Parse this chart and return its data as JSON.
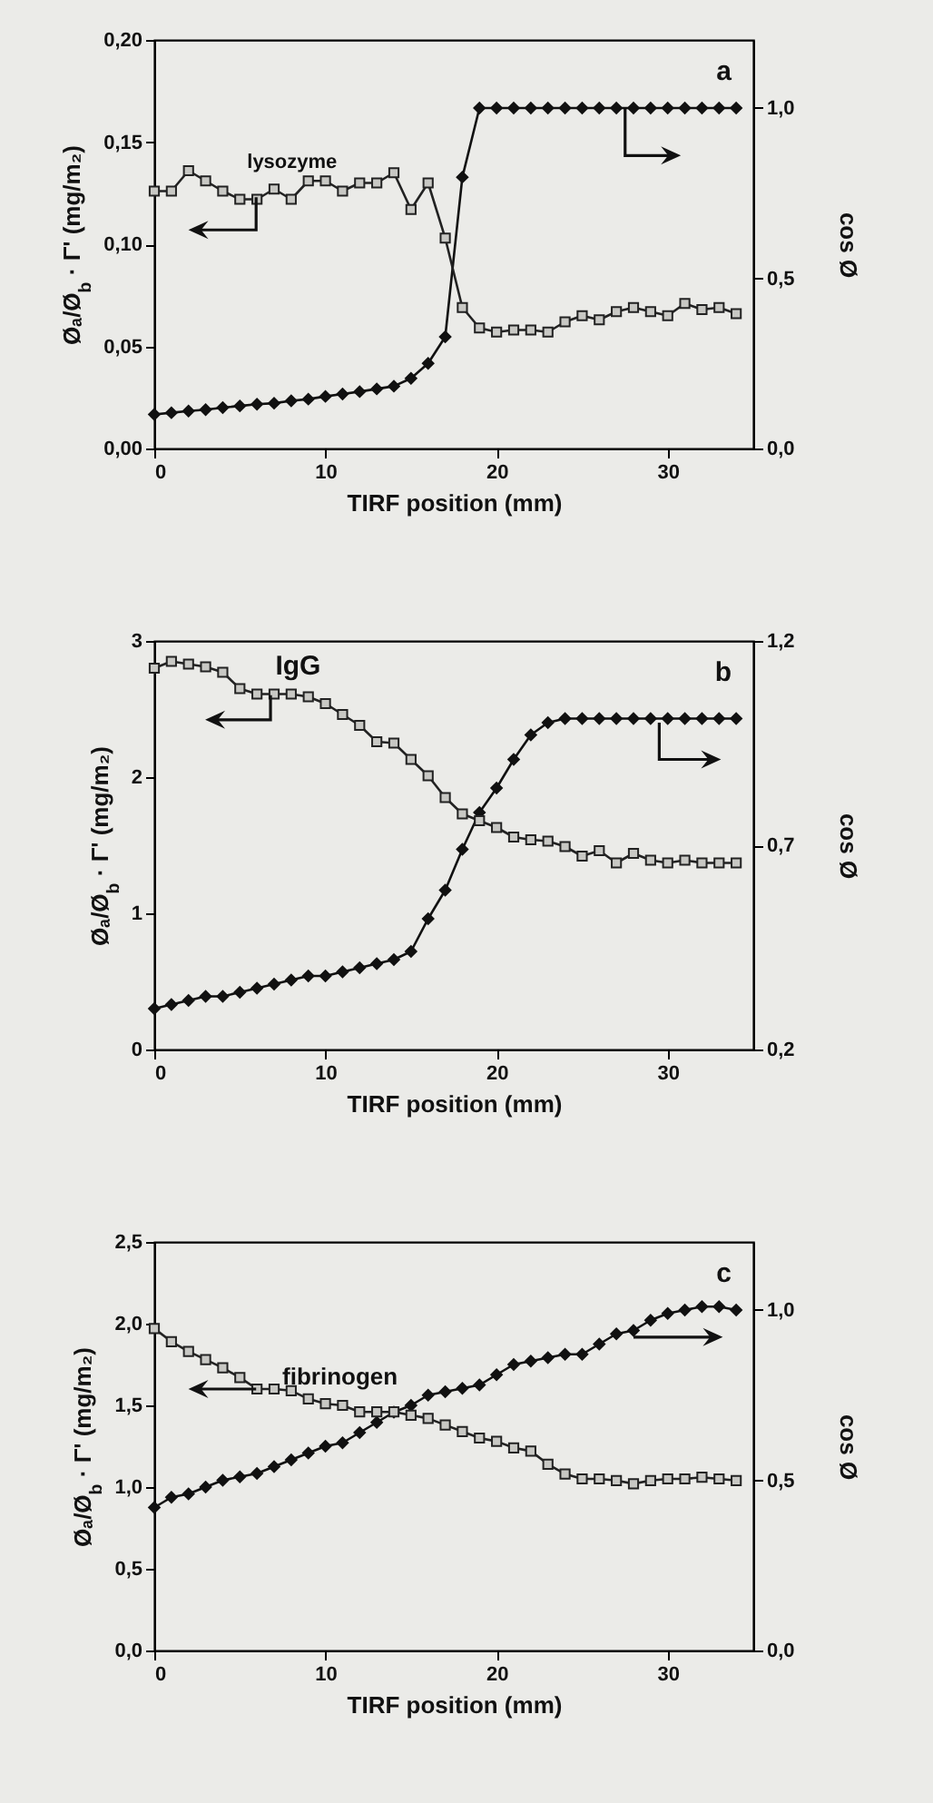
{
  "chart_data": [
    {
      "type": "line",
      "xlabel": "TIRF position (mm)",
      "ylabel": "Øₐ/Ø$_{b}$ · Γ' (mg/m₂)",
      "y2label": "cos Ø",
      "annotations": [
        "a",
        "lysozyme"
      ],
      "x": [
        0,
        1,
        2,
        3,
        4,
        5,
        6,
        7,
        8,
        9,
        10,
        11,
        12,
        13,
        14,
        15,
        16,
        17,
        18,
        19,
        20,
        21,
        22,
        23,
        24,
        25,
        26,
        27,
        28,
        29,
        30,
        31,
        32,
        33,
        34
      ],
      "series": [
        {
          "color": "#222222",
          "marker": "square",
          "values": [
            0.126,
            0.126,
            0.136,
            0.131,
            0.126,
            0.122,
            0.122,
            0.127,
            0.122,
            0.131,
            0.131,
            0.126,
            0.13,
            0.13,
            0.135,
            0.117,
            0.13,
            0.103,
            0.069,
            0.059,
            0.057,
            0.058,
            0.058,
            0.057,
            0.062,
            0.065,
            0.063,
            0.067,
            0.069,
            0.067,
            0.065,
            0.071,
            0.068,
            0.069,
            0.066
          ]
        },
        {
          "color": "#111111",
          "marker": "diamond",
          "axis": "y2",
          "values": [
            0.1,
            0.105,
            0.11,
            0.114,
            0.12,
            0.125,
            0.13,
            0.133,
            0.14,
            0.145,
            0.153,
            0.16,
            0.167,
            0.175,
            0.183,
            0.206,
            0.25,
            0.328,
            0.797,
            1.0,
            1.0,
            1.0,
            1.0,
            1.0,
            1.0,
            1.0,
            1.0,
            1.0,
            1.0,
            1.0,
            1.0,
            1.0,
            1.0,
            1.0,
            1.0
          ]
        }
      ],
      "xlim": [
        0,
        35
      ],
      "xticks": [
        0,
        10,
        20,
        30
      ],
      "ylim": [
        0,
        0.2
      ],
      "yticks": [
        {
          "value": 0,
          "label": "0,00"
        },
        {
          "value": 0.05,
          "label": "0,05"
        },
        {
          "value": 0.1,
          "label": "0,10"
        },
        {
          "value": 0.15,
          "label": "0,15"
        },
        {
          "value": 0.2,
          "label": "0,20"
        }
      ],
      "y2lim": [
        0,
        1.2
      ],
      "y2ticks": [
        {
          "value": 0,
          "label": "0,0"
        },
        {
          "value": 0.5,
          "label": "0,5"
        },
        {
          "value": 1,
          "label": "1,0"
        }
      ],
      "line_style": "solid"
    },
    {
      "type": "line",
      "xlabel": "TIRF position (mm)",
      "ylabel": "Øₐ/Ø$_{b}$ · Γ' (mg/m₂)",
      "y2label": "cos Ø",
      "annotations": [
        "b",
        "IgG"
      ],
      "x": [
        0,
        1,
        2,
        3,
        4,
        5,
        6,
        7,
        8,
        9,
        10,
        11,
        12,
        13,
        14,
        15,
        16,
        17,
        18,
        19,
        20,
        21,
        22,
        23,
        24,
        25,
        26,
        27,
        28,
        29,
        30,
        31,
        32,
        33,
        34
      ],
      "series": [
        {
          "color": "#222222",
          "marker": "square",
          "values": [
            2.8,
            2.85,
            2.83,
            2.81,
            2.77,
            2.65,
            2.61,
            2.61,
            2.61,
            2.59,
            2.54,
            2.46,
            2.38,
            2.26,
            2.25,
            2.13,
            2.01,
            1.85,
            1.73,
            1.68,
            1.63,
            1.56,
            1.54,
            1.53,
            1.49,
            1.42,
            1.46,
            1.37,
            1.44,
            1.39,
            1.37,
            1.39,
            1.37,
            1.37,
            1.37
          ]
        },
        {
          "color": "#111111",
          "marker": "diamond",
          "axis": "y2",
          "values": [
            0.3,
            0.31,
            0.32,
            0.33,
            0.33,
            0.34,
            0.35,
            0.36,
            0.37,
            0.38,
            0.38,
            0.39,
            0.4,
            0.41,
            0.42,
            0.44,
            0.52,
            0.59,
            0.69,
            0.78,
            0.84,
            0.91,
            0.97,
            1.0,
            1.01,
            1.01,
            1.01,
            1.01,
            1.01,
            1.01,
            1.01,
            1.01,
            1.01,
            1.01,
            1.01
          ]
        }
      ],
      "xlim": [
        0,
        35
      ],
      "xticks": [
        0,
        10,
        20,
        30
      ],
      "ylim": [
        0,
        3
      ],
      "yticks": [
        {
          "value": 0,
          "label": "0"
        },
        {
          "value": 1,
          "label": "1"
        },
        {
          "value": 2,
          "label": "2"
        },
        {
          "value": 3,
          "label": "3"
        }
      ],
      "y2lim": [
        0.2,
        1.2
      ],
      "y2ticks": [
        {
          "value": 0.2,
          "label": "0,2"
        },
        {
          "value": 0.7,
          "label": "0,7"
        },
        {
          "value": 1.2,
          "label": "1,2"
        }
      ],
      "line_style": "solid"
    },
    {
      "type": "line",
      "xlabel": "TIRF position (mm)",
      "ylabel": "Øₐ/Ø$_{b}$ · Γ' (mg/m₂)",
      "y2label": "cos Ø",
      "annotations": [
        "c",
        "fibrinogen"
      ],
      "x": [
        0,
        1,
        2,
        3,
        4,
        5,
        6,
        7,
        8,
        9,
        10,
        11,
        12,
        13,
        14,
        15,
        16,
        17,
        18,
        19,
        20,
        21,
        22,
        23,
        24,
        25,
        26,
        27,
        28,
        29,
        30,
        31,
        32,
        33,
        34
      ],
      "series": [
        {
          "color": "#222222",
          "marker": "square",
          "values": [
            1.97,
            1.89,
            1.83,
            1.78,
            1.73,
            1.67,
            1.6,
            1.6,
            1.59,
            1.54,
            1.51,
            1.5,
            1.46,
            1.46,
            1.46,
            1.44,
            1.42,
            1.38,
            1.34,
            1.3,
            1.28,
            1.24,
            1.22,
            1.14,
            1.08,
            1.05,
            1.05,
            1.04,
            1.02,
            1.04,
            1.05,
            1.05,
            1.06,
            1.05,
            1.04
          ]
        },
        {
          "color": "#111111",
          "marker": "diamond",
          "axis": "y2",
          "values": [
            0.42,
            0.45,
            0.46,
            0.48,
            0.5,
            0.51,
            0.52,
            0.54,
            0.56,
            0.58,
            0.6,
            0.61,
            0.64,
            0.67,
            0.7,
            0.72,
            0.75,
            0.76,
            0.77,
            0.78,
            0.81,
            0.84,
            0.85,
            0.86,
            0.87,
            0.87,
            0.9,
            0.93,
            0.94,
            0.97,
            0.99,
            1.0,
            1.01,
            1.01,
            1.0
          ]
        }
      ],
      "xlim": [
        0,
        35
      ],
      "xticks": [
        0,
        10,
        20,
        30
      ],
      "ylim": [
        0,
        2.5
      ],
      "yticks": [
        {
          "value": 0,
          "label": "0,0"
        },
        {
          "value": 0.5,
          "label": "0,5"
        },
        {
          "value": 1,
          "label": "1,0"
        },
        {
          "value": 1.5,
          "label": "1,5"
        },
        {
          "value": 2,
          "label": "2,0"
        },
        {
          "value": 2.5,
          "label": "2,5"
        }
      ],
      "y2lim": [
        0,
        1.2
      ],
      "y2ticks": [
        {
          "value": 0,
          "label": "0,0"
        },
        {
          "value": 0.5,
          "label": "0,5"
        },
        {
          "value": 1,
          "label": "1,0"
        }
      ],
      "line_style": "solid"
    }
  ]
}
